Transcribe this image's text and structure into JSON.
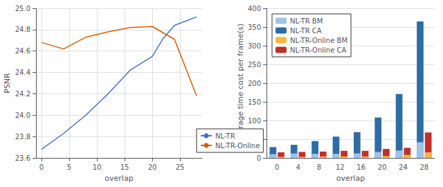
{
  "chart_data": [
    {
      "type": "line",
      "xlabel": "overlap",
      "ylabel": "PSNR",
      "x": [
        0,
        4,
        8,
        12,
        16,
        20,
        22,
        24,
        28
      ],
      "series": [
        {
          "name": "NL-TR",
          "color": "#4472c4",
          "values": [
            23.68,
            23.83,
            24.0,
            24.2,
            24.42,
            24.55,
            24.72,
            24.84,
            24.92
          ]
        },
        {
          "name": "NL-TR-Online",
          "color": "#d45f00",
          "values": [
            24.68,
            24.62,
            24.73,
            24.78,
            24.82,
            24.83,
            24.77,
            24.71,
            24.18
          ]
        }
      ],
      "xlim": [
        -1,
        29
      ],
      "xticks": [
        0,
        5,
        10,
        15,
        20,
        25
      ],
      "ylim": [
        23.6,
        25.0
      ],
      "yticks": [
        23.6,
        23.8,
        {
          "value": 24.0,
          "label": "24.0"
        },
        24.2,
        24.4,
        24.6,
        24.8,
        {
          "value": 25.0,
          "label": "25.0"
        }
      ],
      "grid": true,
      "legend": "lower right"
    },
    {
      "type": "bar",
      "xlabel": "overlap",
      "ylabel": "Average time cost per frame(s)",
      "categories": [
        "0",
        "4",
        "8",
        "12",
        "16",
        "20",
        "24",
        "28"
      ],
      "series": [
        {
          "name": "NL-TR BM",
          "color": "#9dc3e6",
          "values": [
            10,
            12,
            11,
            11,
            12,
            16,
            20,
            42
          ]
        },
        {
          "name": "NL-TR CA",
          "color": "#2e6da4",
          "values": [
            29,
            35,
            45,
            57,
            69,
            108,
            171,
            365
          ]
        },
        {
          "name": "NL-TR-Online BM",
          "color": "#f5b942",
          "values": [
            3,
            3,
            4,
            4,
            4,
            5,
            8,
            15
          ]
        },
        {
          "name": "NL-TR-Online CA",
          "color": "#c0302a",
          "values": [
            15,
            16,
            17,
            19,
            19,
            24,
            27,
            68
          ]
        }
      ],
      "ylim": [
        0,
        400
      ],
      "yticks": [
        0,
        50,
        100,
        150,
        200,
        250,
        300,
        350,
        400
      ],
      "grid": "y",
      "legend": "upper left"
    }
  ]
}
